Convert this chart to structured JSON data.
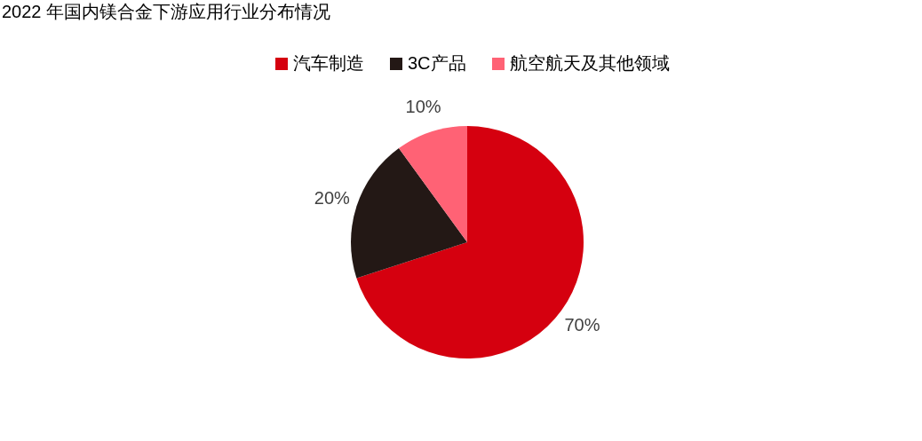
{
  "chart_data": {
    "type": "pie",
    "title": "2022 年国内镁合金下游应用行业分布情况",
    "categories": [
      "汽车制造",
      "3C产品",
      "航空航天及其他领域"
    ],
    "values": [
      70,
      20,
      10
    ],
    "colors": [
      "#d5000f",
      "#231815",
      "#ff6275"
    ],
    "value_labels": [
      "70%",
      "20%",
      "10%"
    ],
    "legend": "top"
  }
}
